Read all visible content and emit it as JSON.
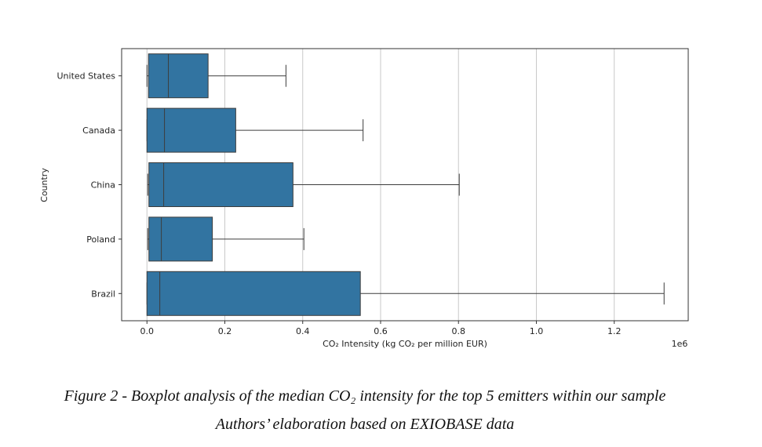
{
  "chart_data": {
    "type": "boxplot",
    "orientation": "horizontal",
    "xlabel": "CO₂ Intensity (kg CO₂ per million EUR)",
    "ylabel": "Country",
    "x_scale_label": "1e6",
    "xlim": [
      -0.065,
      1.39
    ],
    "xticks": [
      0.0,
      0.2,
      0.4,
      0.6,
      0.8,
      1.0,
      1.2
    ],
    "xtick_labels": [
      "0.0",
      "0.2",
      "0.4",
      "0.6",
      "0.8",
      "1.0",
      "1.2"
    ],
    "grid": "x",
    "color": "#3274a1",
    "categories": [
      "United States",
      "Canada",
      "China",
      "Poland",
      "Brazil"
    ],
    "boxes": [
      {
        "min": 0.0,
        "q1": 0.004,
        "median": 0.055,
        "q3": 0.157,
        "max": 0.357
      },
      {
        "min": 0.0,
        "q1": 0.0,
        "median": 0.045,
        "q3": 0.228,
        "max": 0.555
      },
      {
        "min": 0.002,
        "q1": 0.005,
        "median": 0.043,
        "q3": 0.375,
        "max": 0.802
      },
      {
        "min": 0.002,
        "q1": 0.005,
        "median": 0.037,
        "q3": 0.168,
        "max": 0.403
      },
      {
        "min": 0.0,
        "q1": 0.0,
        "median": 0.033,
        "q3": 0.548,
        "max": 1.328
      }
    ]
  },
  "caption": {
    "line1": "Figure 2  - Boxplot analysis of the median CO₂ intensity for the top 5 emitters within our sample",
    "line2": "Authors’ elaboration based on EXIOBASE data"
  }
}
